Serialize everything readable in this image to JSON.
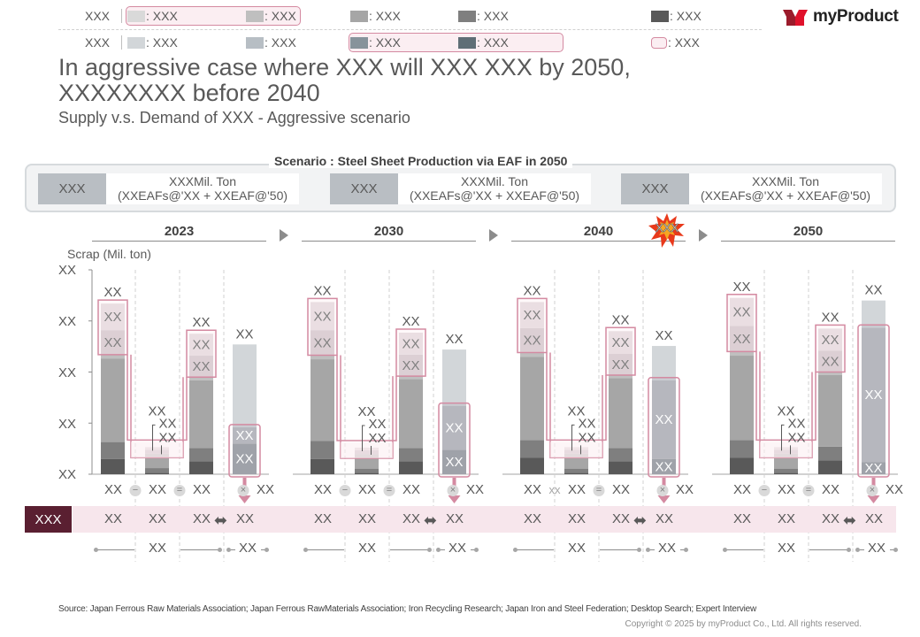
{
  "legend": {
    "row1": {
      "group_label": "XXX",
      "items": [
        {
          "label": "XXX",
          "color": "#d9d9d9"
        },
        {
          "label": "XXX",
          "color": "#bfbfbf"
        },
        {
          "label": "XXX",
          "color": "#a6a6a6"
        },
        {
          "label": "XXX",
          "color": "#7f7f7f"
        },
        {
          "label": "XXX",
          "color": "#595959"
        }
      ]
    },
    "row2": {
      "group_label": "XXX",
      "items": [
        {
          "label": "XXX",
          "color": "#d2d6d9"
        },
        {
          "label": "XXX",
          "color": "#b7bec4"
        },
        {
          "label": "XXX",
          "color": "#87939b"
        },
        {
          "label": "XXX",
          "color": "#5f6e76"
        },
        {
          "label": "XXX",
          "color": "#fbeef2",
          "outline": "#d48aa1"
        }
      ]
    }
  },
  "logo": {
    "text": "myProduct",
    "brand_color": "#c8102e"
  },
  "header": {
    "title": "In aggressive case where XXX will XXX XXX by 2050, XXXXXXXX before 2040",
    "subtitle": "Supply v.s. Demand of XXX - Aggressive scenario"
  },
  "scenario": {
    "title": "Scenario : Steel Sheet Production via EAF in 2050",
    "items": [
      {
        "tag": "XXX",
        "line1": "XXXMil. Ton",
        "line2": "(XXEAFs@'XX + XXEAF@'50)"
      },
      {
        "tag": "XXX",
        "line1": "XXXMil. Ton",
        "line2": "(XXEAFs@'XX + XXEAF@'50)"
      },
      {
        "tag": "XXX",
        "line1": "XXXMil. Ton",
        "line2": "(XXEAFs@'XX + XXEAF@'50)"
      }
    ]
  },
  "years": [
    "2023",
    "2030",
    "2040",
    "2050"
  ],
  "burst_label": "XXX",
  "row_tag": "XXX",
  "chart_data": {
    "type": "bar",
    "title": "Supply v.s. Demand of XXX - Aggressive scenario",
    "ylabel": "Scrap (Mil. ton)",
    "yticks": [
      "XX",
      "XX",
      "XX",
      "XX",
      "XX"
    ],
    "ylim": [
      0,
      40
    ],
    "grid": false,
    "groups": [
      {
        "year": "2023",
        "bars": [
          {
            "name": "supply",
            "total_label": "XX",
            "segments": [
              {
                "value": 3.0,
                "color": "#595959"
              },
              {
                "value": 3.3,
                "color": "#7f7f7f"
              },
              {
                "value": 16.3,
                "color": "#a6a6a6"
              },
              {
                "value": 0.8,
                "color": "#bfbfbf"
              },
              {
                "value": 4.8,
                "color": "#cbbfc5",
                "label": "XX"
              },
              {
                "value": 5.2,
                "color": "#e0d6da",
                "label": "XX"
              }
            ]
          },
          {
            "name": "deduction",
            "total_label": "XX",
            "callouts": [
              "XX",
              "XX"
            ],
            "segments": [
              {
                "value": 0.3,
                "color": "#595959"
              },
              {
                "value": 0.9,
                "color": "#7f7f7f"
              },
              {
                "value": 2.2,
                "color": "#a6a6a6"
              },
              {
                "value": 0.6,
                "color": "#bfbfbf"
              },
              {
                "value": 0.8,
                "color": "#cbbfc5"
              },
              {
                "value": 0.5,
                "color": "#e0d6da"
              }
            ]
          },
          {
            "name": "net",
            "total_label": "XX",
            "segments": [
              {
                "value": 2.5,
                "color": "#595959"
              },
              {
                "value": 2.6,
                "color": "#7f7f7f"
              },
              {
                "value": 13.3,
                "color": "#a6a6a6"
              },
              {
                "value": 0.6,
                "color": "#bfbfbf"
              },
              {
                "value": 4.2,
                "color": "#cbbfc5",
                "label": "XX"
              },
              {
                "value": 4.3,
                "color": "#e0d6da",
                "label": "XX"
              }
            ]
          },
          {
            "name": "demand",
            "total_label": "XX",
            "segments": [
              {
                "value": 6.0,
                "color": "#818890",
                "label": "XX"
              },
              {
                "value": 3.2,
                "color": "#9fa4ac",
                "label": "XX"
              },
              {
                "value": 0.6,
                "color": "#b7bec4"
              },
              {
                "value": 15.6,
                "color": "#d2d6d9"
              }
            ]
          }
        ],
        "row1": [
          "XX",
          "XX",
          "XX",
          "XX"
        ],
        "row1_ops": [
          "minus",
          "equals",
          "times"
        ],
        "row2": [
          "XX",
          "XX",
          "XX",
          "XX"
        ],
        "row3": [
          "XX",
          "XX"
        ]
      },
      {
        "year": "2030",
        "bars": [
          {
            "name": "supply",
            "total_label": "XX",
            "segments": [
              {
                "value": 3.0,
                "color": "#595959"
              },
              {
                "value": 3.5,
                "color": "#7f7f7f"
              },
              {
                "value": 16.0,
                "color": "#a6a6a6"
              },
              {
                "value": 0.8,
                "color": "#bfbfbf"
              },
              {
                "value": 4.9,
                "color": "#cbbfc5",
                "label": "XX"
              },
              {
                "value": 5.5,
                "color": "#e0d6da",
                "label": "XX"
              }
            ]
          },
          {
            "name": "deduction",
            "total_label": "XX",
            "callouts": [
              "XX",
              "XX"
            ],
            "segments": [
              {
                "value": 0.3,
                "color": "#595959"
              },
              {
                "value": 0.8,
                "color": "#7f7f7f"
              },
              {
                "value": 2.2,
                "color": "#a6a6a6"
              },
              {
                "value": 0.6,
                "color": "#bfbfbf"
              },
              {
                "value": 0.8,
                "color": "#cbbfc5"
              },
              {
                "value": 0.5,
                "color": "#e0d6da"
              }
            ]
          },
          {
            "name": "net",
            "total_label": "XX",
            "segments": [
              {
                "value": 2.5,
                "color": "#595959"
              },
              {
                "value": 2.6,
                "color": "#7f7f7f"
              },
              {
                "value": 13.5,
                "color": "#a6a6a6"
              },
              {
                "value": 0.6,
                "color": "#bfbfbf"
              },
              {
                "value": 4.2,
                "color": "#cbbfc5",
                "label": "XX"
              },
              {
                "value": 4.3,
                "color": "#e0d6da",
                "label": "XX"
              }
            ]
          },
          {
            "name": "demand",
            "total_label": "XX",
            "segments": [
              {
                "value": 4.8,
                "color": "#818890",
                "label": "XX"
              },
              {
                "value": 8.6,
                "color": "#9fa4ac",
                "label": "XX"
              },
              {
                "value": 0.6,
                "color": "#b7bec4"
              },
              {
                "value": 10.4,
                "color": "#d2d6d9"
              }
            ]
          }
        ],
        "row1": [
          "XX",
          "XX",
          "XX",
          "XX"
        ],
        "row1_ops": [
          "minus",
          "equals",
          "times"
        ],
        "row2": [
          "XX",
          "XX",
          "XX",
          "XX"
        ],
        "row3": [
          "XX",
          "XX"
        ]
      },
      {
        "year": "2040",
        "bars": [
          {
            "name": "supply",
            "total_label": "XX",
            "segments": [
              {
                "value": 3.2,
                "color": "#595959"
              },
              {
                "value": 3.5,
                "color": "#7f7f7f"
              },
              {
                "value": 16.3,
                "color": "#a6a6a6"
              },
              {
                "value": 0.8,
                "color": "#bfbfbf"
              },
              {
                "value": 4.8,
                "color": "#cbbfc5",
                "label": "XX"
              },
              {
                "value": 5.1,
                "color": "#e0d6da",
                "label": "XX"
              }
            ]
          },
          {
            "name": "deduction",
            "total_label": "XX",
            "callouts": [
              "XX",
              "XX"
            ],
            "segments": [
              {
                "value": 0.3,
                "color": "#595959"
              },
              {
                "value": 0.8,
                "color": "#7f7f7f"
              },
              {
                "value": 2.3,
                "color": "#a6a6a6"
              },
              {
                "value": 0.6,
                "color": "#bfbfbf"
              },
              {
                "value": 0.8,
                "color": "#cbbfc5"
              },
              {
                "value": 0.5,
                "color": "#e0d6da"
              }
            ]
          },
          {
            "name": "net",
            "total_label": "XX",
            "segments": [
              {
                "value": 2.5,
                "color": "#595959"
              },
              {
                "value": 2.6,
                "color": "#7f7f7f"
              },
              {
                "value": 13.7,
                "color": "#a6a6a6"
              },
              {
                "value": 0.6,
                "color": "#bfbfbf"
              },
              {
                "value": 4.2,
                "color": "#cbbfc5",
                "label": "XX"
              },
              {
                "value": 4.4,
                "color": "#e0d6da",
                "label": "XX"
              }
            ]
          },
          {
            "name": "demand",
            "total_label": "XX",
            "segments": [
              {
                "value": 3.0,
                "color": "#818890",
                "label": "XX"
              },
              {
                "value": 15.4,
                "color": "#9fa4ac",
                "label": "XX"
              },
              {
                "value": 0.4,
                "color": "#b7bec4"
              },
              {
                "value": 6.3,
                "color": "#d2d6d9"
              }
            ]
          }
        ],
        "row1": [
          "XX",
          "XX",
          "XX",
          "XX"
        ],
        "row1_ops": [
          "xx",
          "equals",
          "times"
        ],
        "row2": [
          "XX",
          "XX",
          "XX",
          "XX"
        ],
        "row3": [
          "XX",
          "XX"
        ]
      },
      {
        "year": "2050",
        "bars": [
          {
            "name": "supply",
            "total_label": "XX",
            "segments": [
              {
                "value": 3.2,
                "color": "#595959"
              },
              {
                "value": 3.5,
                "color": "#7f7f7f"
              },
              {
                "value": 16.5,
                "color": "#a6a6a6"
              },
              {
                "value": 0.8,
                "color": "#bfbfbf"
              },
              {
                "value": 5.0,
                "color": "#cbbfc5",
                "label": "XX"
              },
              {
                "value": 5.5,
                "color": "#e0d6da",
                "label": "XX"
              }
            ]
          },
          {
            "name": "deduction",
            "total_label": "XX",
            "callouts": [
              "XX",
              "XX"
            ],
            "segments": [
              {
                "value": 0.3,
                "color": "#595959"
              },
              {
                "value": 0.8,
                "color": "#7f7f7f"
              },
              {
                "value": 2.3,
                "color": "#a6a6a6"
              },
              {
                "value": 0.6,
                "color": "#bfbfbf"
              },
              {
                "value": 0.8,
                "color": "#cbbfc5"
              },
              {
                "value": 0.5,
                "color": "#e0d6da"
              }
            ]
          },
          {
            "name": "net",
            "total_label": "XX",
            "segments": [
              {
                "value": 2.7,
                "color": "#595959"
              },
              {
                "value": 2.7,
                "color": "#7f7f7f"
              },
              {
                "value": 14.0,
                "color": "#a6a6a6"
              },
              {
                "value": 0.6,
                "color": "#bfbfbf"
              },
              {
                "value": 4.2,
                "color": "#cbbfc5",
                "label": "XX"
              },
              {
                "value": 4.3,
                "color": "#e0d6da",
                "label": "XX"
              }
            ]
          },
          {
            "name": "demand",
            "total_label": "XX",
            "segments": [
              {
                "value": 2.4,
                "color": "#818890",
                "label": "XX"
              },
              {
                "value": 26.3,
                "color": "#9fa4ac",
                "label": "XX"
              },
              {
                "value": 0.4,
                "color": "#b7bec4"
              },
              {
                "value": 4.9,
                "color": "#d2d6d9"
              }
            ]
          }
        ],
        "row1": [
          "XX",
          "XX",
          "XX",
          "XX"
        ],
        "row1_ops": [
          "minus",
          "equals",
          "times"
        ],
        "row2": [
          "XX",
          "XX",
          "XX",
          "XX"
        ],
        "row3": [
          "XX",
          "XX"
        ]
      }
    ]
  },
  "footer": {
    "source": "Source: Japan Ferrous Raw Materials Association; Japan Ferrous RawMaterials Association; Iron Recycling Research; Japan Iron and Steel Federation; Desktop Search; Expert Interview",
    "copyright": "Copyright © 2025 by myProduct Co., Ltd.  All rights reserved."
  }
}
